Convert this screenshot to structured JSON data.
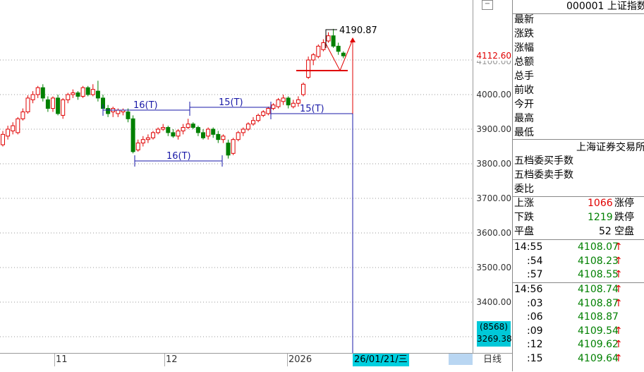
{
  "axis": {
    "ticks": [
      "4000.00",
      "3900.00",
      "3800.00",
      "3700.00",
      "3600.00",
      "3500.00",
      "3400.00"
    ],
    "partial_tick": "4100.00",
    "current_price": "4112.60",
    "box_count": "(8568)",
    "box_value": "3269.38"
  },
  "chart": {
    "high_label": "4190.87",
    "spans": [
      "16(T)",
      "15(T)",
      "16(T)",
      "15(T)"
    ]
  },
  "dates": {
    "d1": "11",
    "d2": "12",
    "d3": "2026",
    "current": "26/01/21/三",
    "tab": "日线"
  },
  "panel": {
    "code": "000001 上证指数",
    "labels": [
      "最新",
      "涨跌",
      "涨幅",
      "总额",
      "总手",
      "前收",
      "今开",
      "最高",
      "最低"
    ],
    "exchange": "上海证券交易所",
    "labels2": [
      "五档委买手数",
      "五档委卖手数",
      "委比"
    ],
    "up_label": "上涨",
    "up_count": "1066",
    "up_stop": "涨停",
    "down_label": "下跌",
    "down_count": "1219",
    "down_stop": "跌停",
    "flat_label": "平盘",
    "flat_count": "52",
    "flat_stop": "空盘",
    "ticks_a": [
      {
        "t": "14:55",
        "p": "4108.07",
        "a": "↑"
      },
      {
        "t": ":54",
        "p": "4108.23",
        "a": "↑"
      },
      {
        "t": ":57",
        "p": "4108.55",
        "a": "↑"
      }
    ],
    "ticks_b": [
      {
        "t": "14:56",
        "p": "4108.74",
        "a": "↑"
      },
      {
        "t": ":03",
        "p": "4108.87",
        "a": "↑"
      },
      {
        "t": ":06",
        "p": "4108.87",
        "a": ""
      },
      {
        "t": ":09",
        "p": "4109.54",
        "a": "↑"
      },
      {
        "t": ":12",
        "p": "4109.62",
        "a": "↑"
      },
      {
        "t": ":15",
        "p": "4109.64",
        "a": "↑"
      }
    ]
  },
  "colors": {
    "up": "#e00000",
    "down": "#008000",
    "ann": "#1a1aa8",
    "accent": "#00c8d8"
  }
}
